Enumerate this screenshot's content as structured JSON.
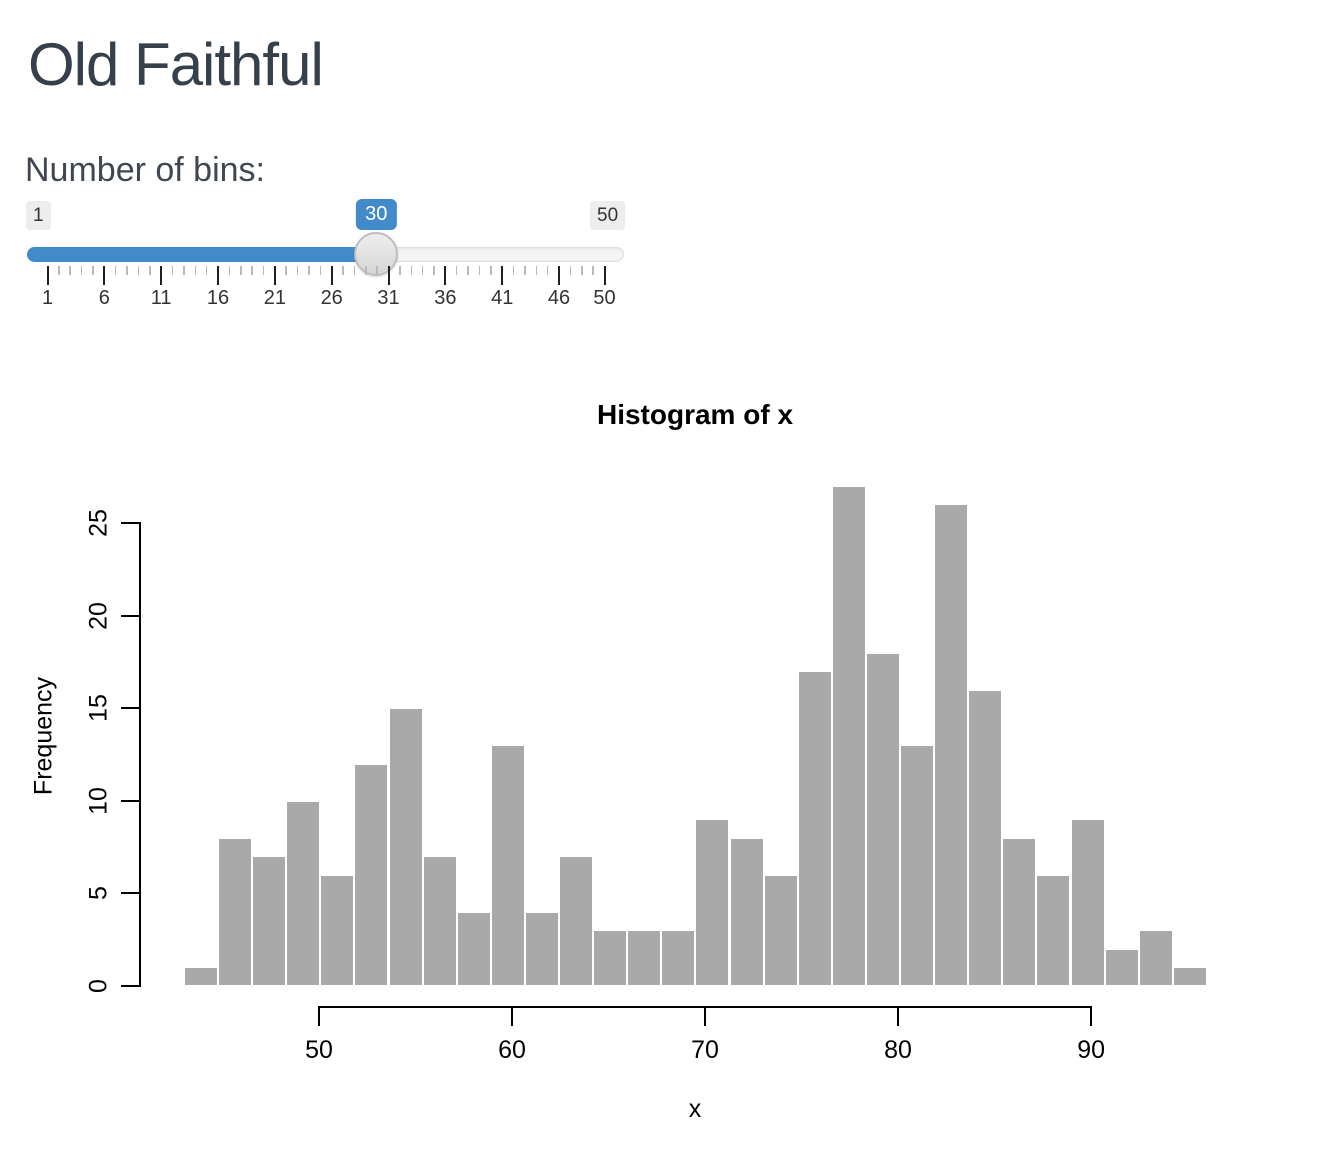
{
  "app": {
    "title": "Old Faithful"
  },
  "slider": {
    "label": "Number of bins:",
    "min": 1,
    "max": 50,
    "value": 30,
    "min_label": "1",
    "max_label": "50",
    "value_label": "30",
    "major_ticks": [
      1,
      6,
      11,
      16,
      21,
      26,
      31,
      36,
      41,
      46,
      50
    ],
    "accent_color": "#428bca",
    "handle_color": "#dcdcdc",
    "track_color": "#f4f4f4"
  },
  "chart_data": {
    "type": "bar",
    "title": "Histogram of x",
    "xlabel": "x",
    "ylabel": "Frequency",
    "bin_start": 43,
    "bin_end": 96,
    "bin_count": 30,
    "counts": [
      1,
      8,
      7,
      10,
      6,
      12,
      15,
      7,
      4,
      13,
      4,
      7,
      3,
      3,
      3,
      9,
      8,
      6,
      17,
      27,
      18,
      13,
      26,
      16,
      8,
      6,
      9,
      2,
      3,
      1
    ],
    "x_ticks": [
      50,
      60,
      70,
      80,
      90
    ],
    "y_ticks": [
      0,
      5,
      10,
      15,
      20,
      25
    ],
    "ylim": [
      0,
      27
    ],
    "grid": false,
    "bar_fill": "#a9a9a9",
    "bar_border": "#ffffff"
  }
}
